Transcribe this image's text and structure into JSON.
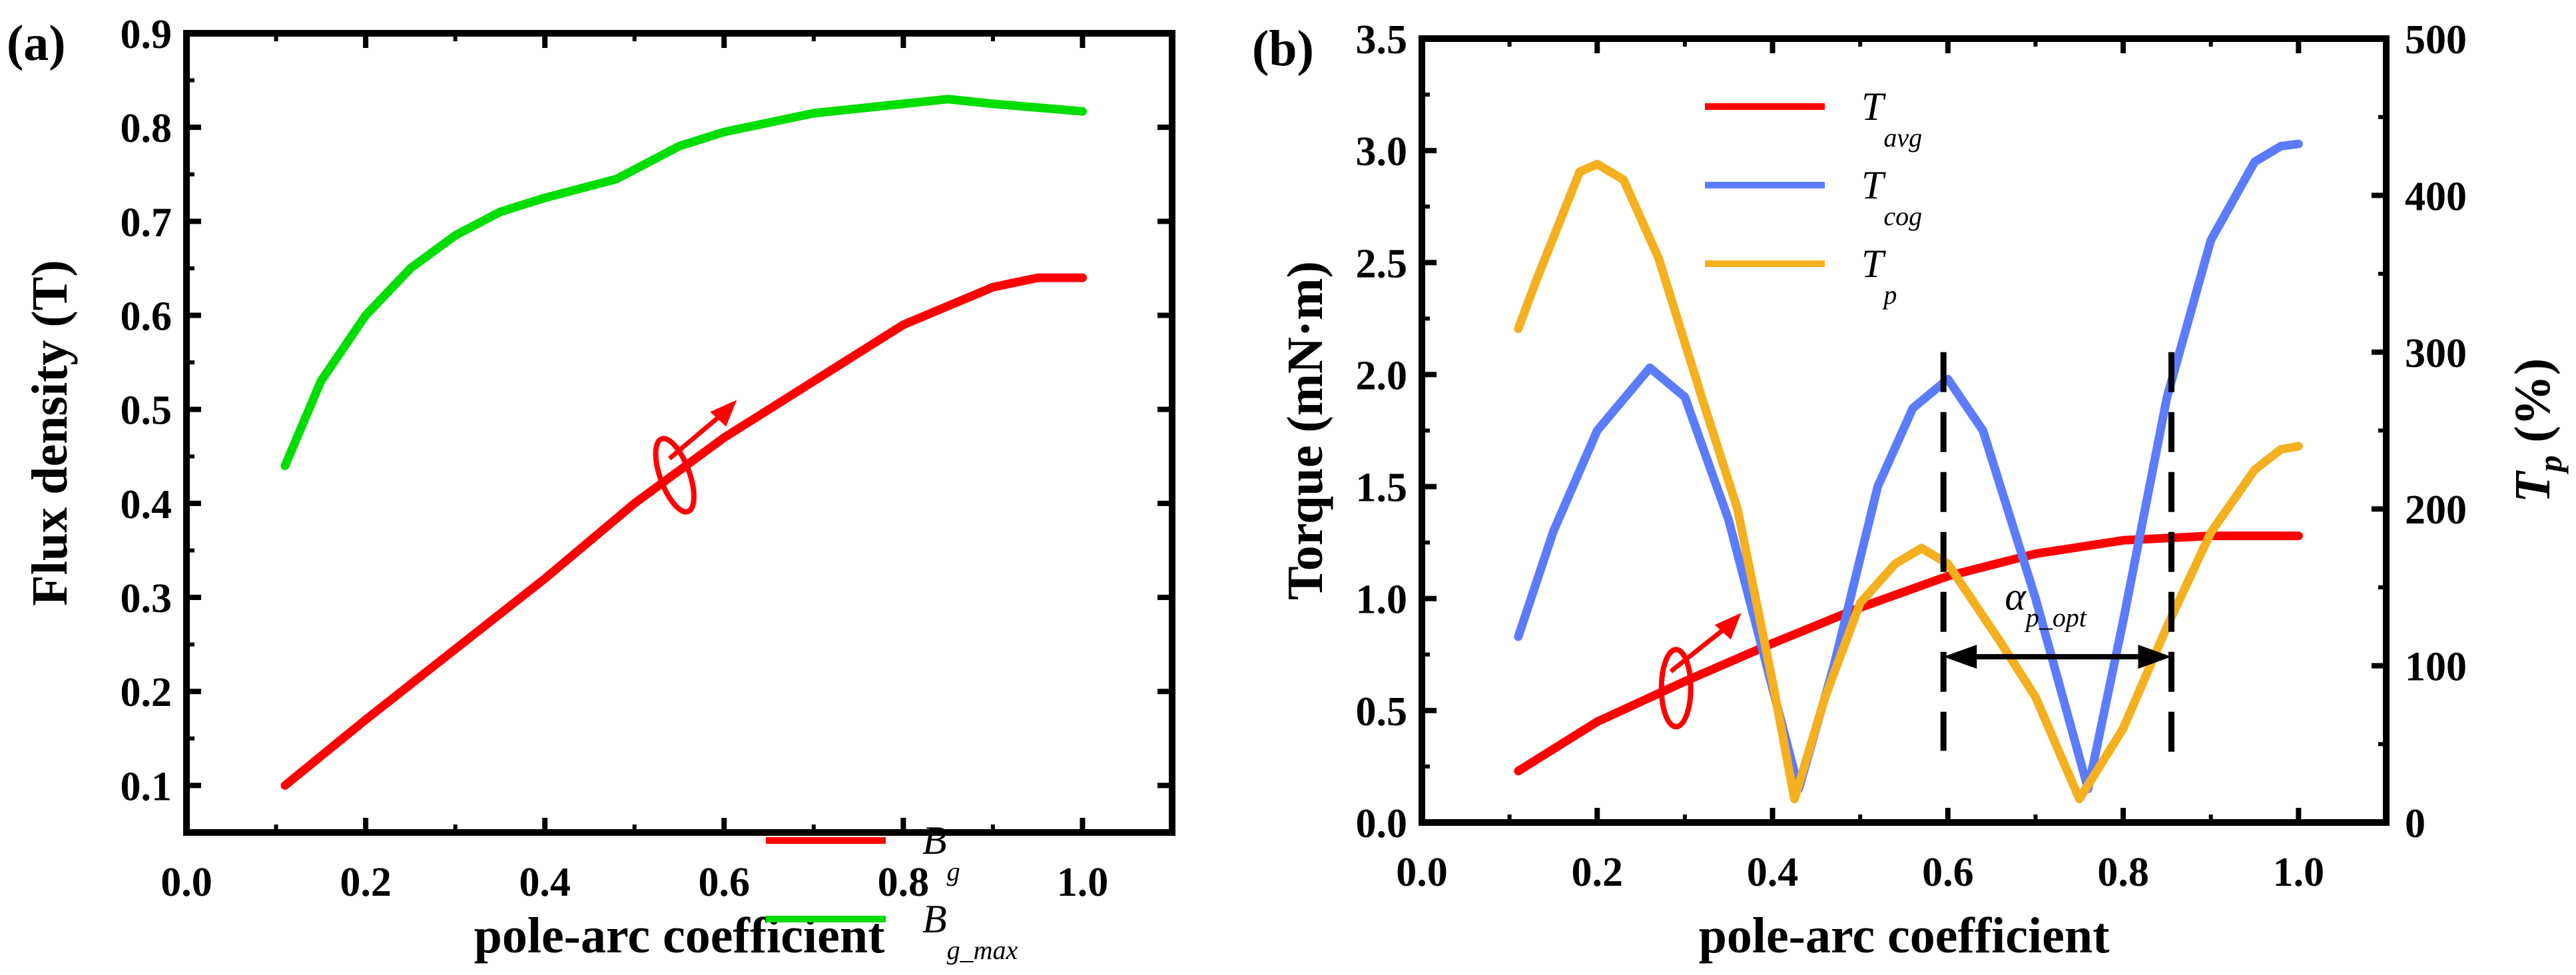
{
  "chart_data": [
    {
      "type": "line",
      "panel_label": "(a)",
      "title": "",
      "xlabel": "pole-arc coefficient",
      "ylabel": "Flux density  (T)",
      "xlim": [
        0,
        1.1
      ],
      "ylim": [
        0.05,
        0.9
      ],
      "xticks": [
        "0.0",
        "0.2",
        "0.4",
        "0.6",
        "0.8",
        "1.0"
      ],
      "yticks": [
        "0.1",
        "0.2",
        "0.3",
        "0.4",
        "0.5",
        "0.6",
        "0.7",
        "0.8",
        "0.9"
      ],
      "legend_position": "bottom-right",
      "series": [
        {
          "name": "B",
          "subscript": "g",
          "color": "#ff0000",
          "x": [
            0.11,
            0.2,
            0.3,
            0.4,
            0.5,
            0.6,
            0.7,
            0.8,
            0.9,
            0.95,
            1.0
          ],
          "y": [
            0.1,
            0.17,
            0.245,
            0.32,
            0.4,
            0.47,
            0.53,
            0.59,
            0.63,
            0.64,
            0.64
          ]
        },
        {
          "name": "B",
          "subscript": "g_max",
          "color": "#00dd00",
          "x": [
            0.11,
            0.15,
            0.2,
            0.25,
            0.3,
            0.35,
            0.4,
            0.48,
            0.55,
            0.6,
            0.7,
            0.8,
            0.85,
            0.9,
            1.0
          ],
          "y": [
            0.44,
            0.53,
            0.6,
            0.65,
            0.685,
            0.71,
            0.725,
            0.745,
            0.78,
            0.795,
            0.815,
            0.825,
            0.83,
            0.825,
            0.817
          ]
        }
      ]
    },
    {
      "type": "line",
      "panel_label": "(b)",
      "title": "",
      "xlabel": "pole-arc coefficient",
      "ylabel": "Torque  (mN·m)",
      "y2label": "T",
      "y2label_sub": "p",
      "y2label_unit": "(%)",
      "xlim": [
        0,
        1.1
      ],
      "ylim": [
        0,
        3.5
      ],
      "y2lim": [
        0,
        500
      ],
      "xticks": [
        "0.0",
        "0.2",
        "0.4",
        "0.6",
        "0.8",
        "1.0"
      ],
      "yticks": [
        "0.0",
        "0.5",
        "1.0",
        "1.5",
        "2.0",
        "2.5",
        "3.0",
        "3.5"
      ],
      "y2ticks": [
        "0",
        "100",
        "200",
        "300",
        "400",
        "500"
      ],
      "legend_position": "top-center",
      "annotation": {
        "label": "α",
        "label_sub": "p_opt",
        "x_start": 0.595,
        "x_end": 0.855
      },
      "series": [
        {
          "name": "T",
          "subscript": "avg",
          "color": "#ff0000",
          "axis": "left",
          "x": [
            0.11,
            0.2,
            0.3,
            0.4,
            0.5,
            0.6,
            0.7,
            0.8,
            0.9,
            1.0
          ],
          "y": [
            0.23,
            0.45,
            0.63,
            0.8,
            0.96,
            1.1,
            1.2,
            1.26,
            1.28,
            1.28
          ]
        },
        {
          "name": "T",
          "subscript": "cog",
          "color": "#5b7cff",
          "axis": "left",
          "x": [
            0.11,
            0.15,
            0.2,
            0.26,
            0.3,
            0.35,
            0.4,
            0.43,
            0.47,
            0.52,
            0.56,
            0.6,
            0.64,
            0.7,
            0.76,
            0.8,
            0.85,
            0.9,
            0.95,
            0.98,
            1.0
          ],
          "y": [
            0.83,
            1.3,
            1.75,
            2.03,
            1.9,
            1.35,
            0.6,
            0.15,
            0.7,
            1.5,
            1.85,
            1.98,
            1.75,
            1.0,
            0.15,
            0.9,
            1.9,
            2.6,
            2.95,
            3.02,
            3.03
          ]
        },
        {
          "name": "T",
          "subscript": "p",
          "color": "#f5b020",
          "axis": "right",
          "x": [
            0.11,
            0.13,
            0.18,
            0.2,
            0.23,
            0.27,
            0.32,
            0.36,
            0.4,
            0.425,
            0.46,
            0.5,
            0.54,
            0.57,
            0.6,
            0.63,
            0.66,
            0.7,
            0.75,
            0.8,
            0.85,
            0.9,
            0.95,
            0.98,
            1.0
          ],
          "y": [
            315,
            345,
            415,
            420,
            410,
            360,
            270,
            200,
            90,
            15,
            80,
            140,
            165,
            175,
            165,
            140,
            115,
            80,
            15,
            60,
            125,
            185,
            225,
            238,
            240
          ]
        }
      ]
    }
  ]
}
